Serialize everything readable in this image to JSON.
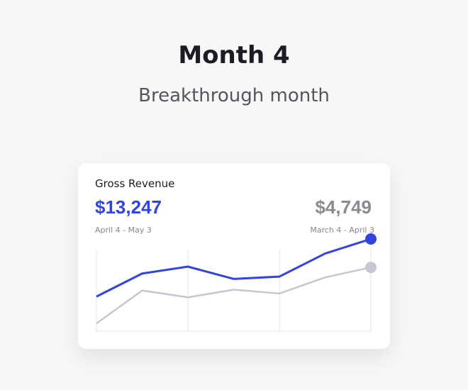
{
  "header": {
    "title": "Month 4",
    "subtitle": "Breakthrough month"
  },
  "card": {
    "label": "Gross Revenue",
    "current": {
      "amount": "$13,247",
      "period": "April 4 - May 3"
    },
    "previous": {
      "amount": "$4,749",
      "period": "March 4 - April 3"
    }
  },
  "chart_data": {
    "type": "line",
    "categories": [
      null,
      null,
      null,
      null,
      null,
      null,
      null
    ],
    "ylim": [
      0,
      120
    ],
    "series": [
      {
        "color": "#3344dd",
        "values": [
          45,
          75,
          84,
          68,
          71,
          101,
          120
        ]
      },
      {
        "color": "#c4c7cf",
        "values": [
          10,
          53,
          44,
          54,
          49,
          70,
          83
        ]
      }
    ]
  }
}
